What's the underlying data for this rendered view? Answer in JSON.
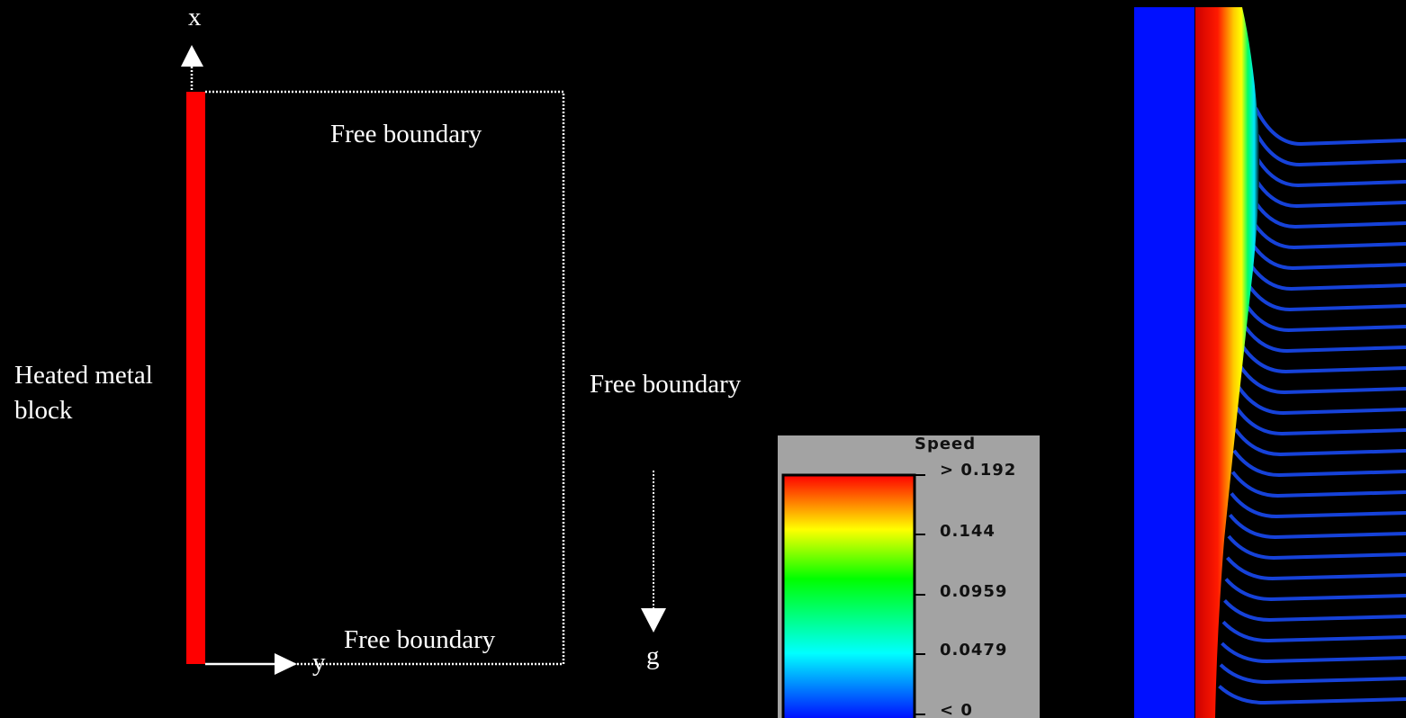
{
  "axes": {
    "x": "x",
    "y": "y",
    "g": "g"
  },
  "boundaries": {
    "top": "Free boundary",
    "right": "Free boundary",
    "bottom": "Free boundary"
  },
  "block_label": "Heated metal block",
  "legend": {
    "title": "Speed",
    "labels": [
      "> 0.192",
      "0.144",
      "0.0959",
      "0.0479",
      "< 0"
    ]
  }
}
